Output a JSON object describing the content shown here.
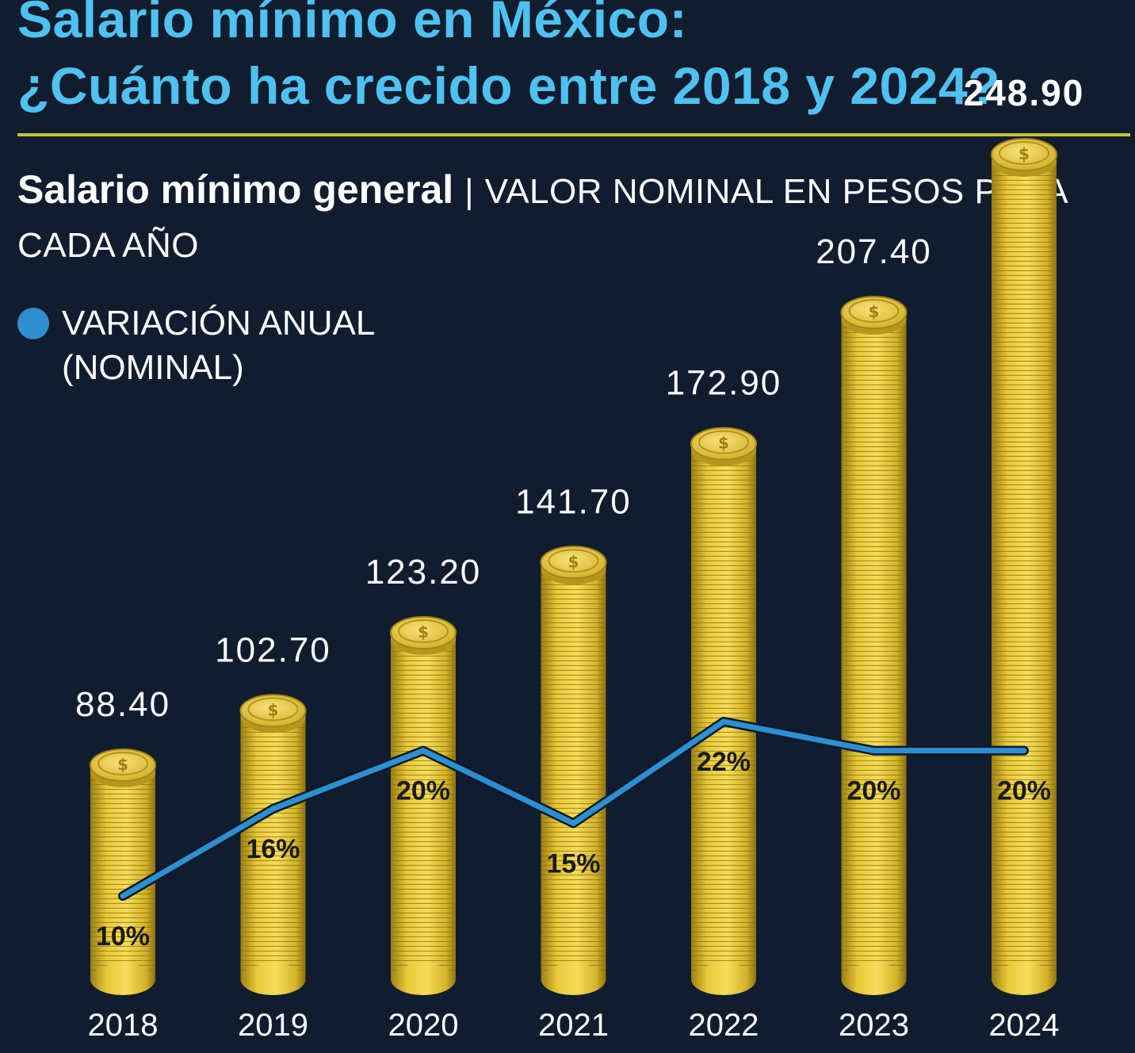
{
  "header": {
    "title_line1": "Salario mínimo en México:",
    "title_line2": "¿Cuánto ha crecido entre 2018 y 2024?",
    "subtitle_bold": "Salario mínimo general",
    "subtitle_sep": "|",
    "subtitle_rest": "VALOR NOMINAL EN PESOS PARA CADA AÑO"
  },
  "legend": {
    "label": "VARIACIÓN ANUAL (NOMINAL)",
    "color": "#2e8fd0"
  },
  "colors": {
    "background": "#111d2f",
    "title": "#4fc1f0",
    "rule": "#c7c234",
    "coin": "#e6c63a",
    "line": "#2e8fd0"
  },
  "chart_data": {
    "type": "bar",
    "categories": [
      "2018",
      "2019",
      "2020",
      "2021",
      "2022",
      "2023",
      "2024"
    ],
    "series": [
      {
        "values": [
          88.4,
          102.7,
          123.2,
          141.7,
          172.9,
          207.4,
          248.9
        ]
      },
      {
        "values": [
          10,
          16,
          20,
          15,
          22,
          20,
          20
        ]
      }
    ],
    "value_labels": [
      "88.40",
      "102.70",
      "123.20",
      "141.70",
      "172.90",
      "207.40",
      "248.90"
    ],
    "pct_labels": [
      "10%",
      "16%",
      "20%",
      "15%",
      "22%",
      "20%",
      "20%"
    ],
    "highlight_last": true
  }
}
